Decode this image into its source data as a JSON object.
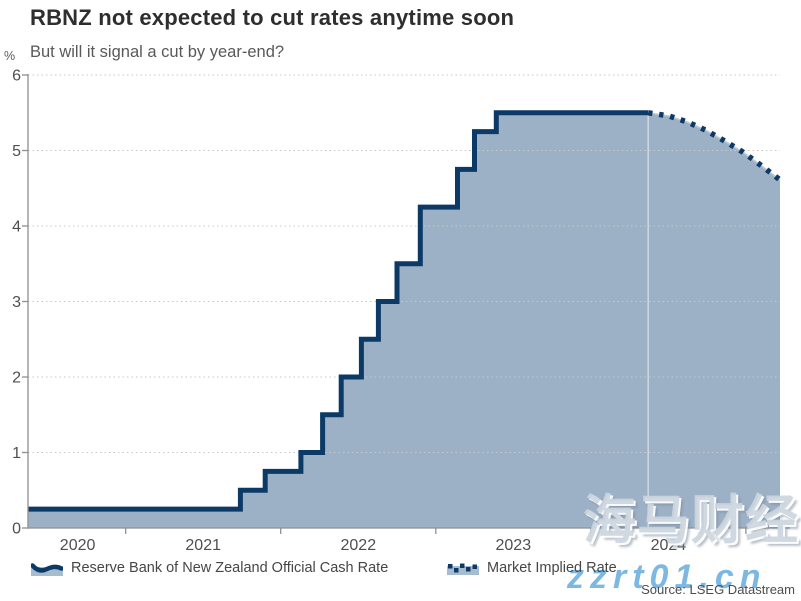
{
  "chart_data": {
    "type": "area",
    "title": "RBNZ not expected to cut rates anytime soon",
    "subtitle": "But will it signal a cut by year-end?",
    "ylabel": "%",
    "ylim": [
      0,
      6
    ],
    "yticks": [
      0,
      1,
      2,
      3,
      4,
      5,
      6
    ],
    "xlim": [
      2020.37,
      2025.22
    ],
    "x_boundary_ticks": [
      2021,
      2022,
      2023,
      2024,
      2025
    ],
    "x_year_labels": [
      {
        "label": "2020",
        "x": 2020.69
      },
      {
        "label": "2021",
        "x": 2021.5
      },
      {
        "label": "2022",
        "x": 2022.5
      },
      {
        "label": "2023",
        "x": 2023.5
      },
      {
        "label": "2024",
        "x": 2024.5
      }
    ],
    "grid": "dotted-horizontal",
    "legend_position": "bottom",
    "forecast_divider_x": 2024.37,
    "series": [
      {
        "name": "Reserve Bank of New Zealand Official Cash Rate",
        "type": "step-line-area",
        "line_style": "solid",
        "points": [
          [
            2020.37,
            0.25
          ],
          [
            2021.74,
            0.25
          ],
          [
            2021.74,
            0.5
          ],
          [
            2021.9,
            0.5
          ],
          [
            2021.9,
            0.75
          ],
          [
            2022.13,
            0.75
          ],
          [
            2022.13,
            1.0
          ],
          [
            2022.27,
            1.0
          ],
          [
            2022.27,
            1.5
          ],
          [
            2022.39,
            1.5
          ],
          [
            2022.39,
            2.0
          ],
          [
            2022.52,
            2.0
          ],
          [
            2022.52,
            2.5
          ],
          [
            2022.63,
            2.5
          ],
          [
            2022.63,
            3.0
          ],
          [
            2022.75,
            3.0
          ],
          [
            2022.75,
            3.5
          ],
          [
            2022.9,
            3.5
          ],
          [
            2022.9,
            4.25
          ],
          [
            2023.14,
            4.25
          ],
          [
            2023.14,
            4.75
          ],
          [
            2023.25,
            4.75
          ],
          [
            2023.25,
            5.25
          ],
          [
            2023.39,
            5.25
          ],
          [
            2023.39,
            5.5
          ],
          [
            2024.37,
            5.5
          ]
        ]
      },
      {
        "name": "Market Implied Rate",
        "type": "line",
        "line_style": "dotted",
        "points": [
          [
            2024.37,
            5.5
          ],
          [
            2024.5,
            5.46
          ],
          [
            2024.62,
            5.38
          ],
          [
            2024.74,
            5.27
          ],
          [
            2024.86,
            5.13
          ],
          [
            2024.98,
            4.98
          ],
          [
            2025.1,
            4.8
          ],
          [
            2025.22,
            4.61
          ]
        ]
      }
    ]
  },
  "source": "Source: LSEG Datastream",
  "watermark": {
    "cjk": "海马财经",
    "latin": "zzrt01.cn"
  },
  "icons": {
    "legend_solid_swatch": "wave-line-swatch-icon",
    "legend_dotted_swatch": "dotted-line-swatch-icon"
  },
  "colors": {
    "line": "#0c3a67",
    "fill": "#9db1c6",
    "swatch_bg": "#a8bcd0",
    "grid": "#c8c8c8",
    "axis": "#8f8f8f",
    "title": "#2e2e2e",
    "subtitle": "#595959",
    "tick_label": "#4f4f4f",
    "legend_text": "#464646",
    "source_text": "#4c4c4c",
    "watermark_blue": "#7cb8e2",
    "watermark_gray": "#ccd5de",
    "forecast_divider": "rgba(255,255,255,0.5)"
  }
}
